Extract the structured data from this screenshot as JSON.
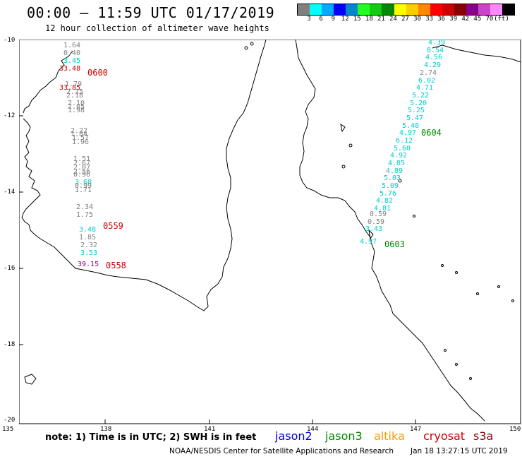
{
  "header": {
    "title": "00:00 – 11:59 UTC 01/17/2019",
    "subtitle": "12 hour collection of altimeter wave heights"
  },
  "color_scale": {
    "colors": [
      "#808080",
      "#00ffff",
      "#00aaff",
      "#0000ff",
      "#0088cc",
      "#22ff22",
      "#11cc11",
      "#008800",
      "#ffff00",
      "#ffcc00",
      "#ff8800",
      "#ff0000",
      "#cc0000",
      "#880000",
      "#880088",
      "#cc44cc",
      "#ff88ff",
      "#000000"
    ],
    "labels": [
      "3",
      "6",
      "9",
      "12",
      "15",
      "18",
      "21",
      "24",
      "27",
      "30",
      "33",
      "36",
      "39",
      "42",
      "45",
      "70",
      "(ft)"
    ]
  },
  "axes": {
    "lat_labels": [
      "-10",
      "-12",
      "-14",
      "-16",
      "-18",
      "-20"
    ],
    "lon_labels": [
      "135",
      "138",
      "141",
      "144",
      "147",
      "150"
    ]
  },
  "tracks": [
    {
      "name": "track-0600",
      "time": "0600",
      "time_color": "#cc0000",
      "points": [
        {
          "v": "1.64",
          "c": "#808080"
        },
        {
          "v": "0.40",
          "c": "#808080"
        },
        {
          "v": "3.45",
          "c": "#00cccc"
        },
        {
          "v": "33.48",
          "c": "#cc0000"
        },
        {
          "v": "1.79",
          "c": "#808080"
        },
        {
          "v": "33.85",
          "c": "#cc0000"
        },
        {
          "v": "2.15",
          "c": "#808080"
        },
        {
          "v": "2.18",
          "c": "#808080"
        },
        {
          "v": "2.10",
          "c": "#808080"
        },
        {
          "v": "2.05",
          "c": "#808080"
        },
        {
          "v": "1.98",
          "c": "#808080"
        },
        {
          "v": "2.22",
          "c": "#808080"
        },
        {
          "v": "1.84",
          "c": "#808080"
        },
        {
          "v": "1.57",
          "c": "#808080"
        },
        {
          "v": "1.96",
          "c": "#808080"
        },
        {
          "v": "1.51",
          "c": "#808080"
        },
        {
          "v": "2.67",
          "c": "#808080"
        },
        {
          "v": "2.07",
          "c": "#808080"
        },
        {
          "v": "2.56",
          "c": "#808080"
        },
        {
          "v": "0.96",
          "c": "#808080"
        },
        {
          "v": "3.68",
          "c": "#00cccc"
        },
        {
          "v": "0.99",
          "c": "#808080"
        },
        {
          "v": "1.71",
          "c": "#808080"
        }
      ]
    },
    {
      "name": "track-0559",
      "time": "0559",
      "time_color": "#cc0000",
      "points": [
        {
          "v": "2.34",
          "c": "#808080"
        },
        {
          "v": "1.75",
          "c": "#808080"
        },
        {
          "v": "3.48",
          "c": "#00cccc"
        },
        {
          "v": "1.85",
          "c": "#808080"
        },
        {
          "v": "2.32",
          "c": "#808080"
        },
        {
          "v": "3.53",
          "c": "#00cccc"
        }
      ]
    },
    {
      "name": "track-0558",
      "time": "0558",
      "time_color": "#cc0000",
      "points": [
        {
          "v": "39.15",
          "c": "#880088"
        }
      ]
    },
    {
      "name": "track-0604",
      "time": "0604",
      "time_color": "#008800",
      "points": [
        {
          "v": "4.39",
          "c": "#00cccc"
        },
        {
          "v": "8.54",
          "c": "#00cccc"
        },
        {
          "v": "4.56",
          "c": "#00cccc"
        },
        {
          "v": "4.29",
          "c": "#00cccc"
        },
        {
          "v": "2.74",
          "c": "#808080"
        },
        {
          "v": "6.02",
          "c": "#00cccc"
        },
        {
          "v": "4.71",
          "c": "#00cccc"
        },
        {
          "v": "5.22",
          "c": "#00cccc"
        },
        {
          "v": "5.20",
          "c": "#00cccc"
        },
        {
          "v": "5.25",
          "c": "#00cccc"
        },
        {
          "v": "5.47",
          "c": "#00cccc"
        },
        {
          "v": "5.48",
          "c": "#00cccc"
        },
        {
          "v": "4.97",
          "c": "#00cccc"
        },
        {
          "v": "6.12",
          "c": "#00cccc"
        },
        {
          "v": "5.60",
          "c": "#00cccc"
        },
        {
          "v": "4.92",
          "c": "#00cccc"
        },
        {
          "v": "4.85",
          "c": "#00cccc"
        },
        {
          "v": "4.89",
          "c": "#00cccc"
        },
        {
          "v": "5.03",
          "c": "#00cccc"
        },
        {
          "v": "5.09",
          "c": "#00cccc"
        },
        {
          "v": "5.76",
          "c": "#00cccc"
        },
        {
          "v": "4.82",
          "c": "#00cccc"
        },
        {
          "v": "4.81",
          "c": "#00cccc"
        }
      ]
    },
    {
      "name": "track-0603",
      "time": "0603",
      "time_color": "#008800",
      "points": [
        {
          "v": "0.59",
          "c": "#808080"
        },
        {
          "v": "0.59",
          "c": "#808080"
        },
        {
          "v": "3.43",
          "c": "#00cccc"
        },
        {
          "v": "4.97",
          "c": "#00cccc"
        }
      ]
    }
  ],
  "footer": {
    "note": "note: 1) Time is in UTC; 2) SWH is in feet",
    "legend": [
      {
        "label": "jason2",
        "color": "#0000cc"
      },
      {
        "label": "jason3",
        "color": "#008800"
      },
      {
        "label": "altika",
        "color": "#ff9900"
      },
      {
        "label": "cryosat",
        "color": "#cc0000"
      },
      {
        "label": "s3a",
        "color": "#880000"
      }
    ],
    "credit": "NOAA/NESDIS Center for Satellite Applications and Research",
    "timestamp": "Jan 18 13:27:15 UTC 2019"
  }
}
